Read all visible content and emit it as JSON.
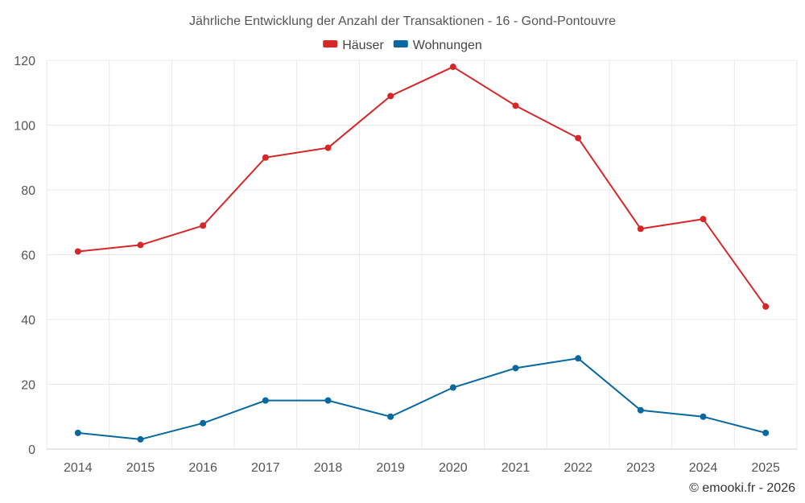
{
  "chart_data": {
    "type": "line",
    "title": "Jährliche Entwicklung der Anzahl der Transaktionen - 16 - Gond-Pontouvre",
    "categories": [
      "2014",
      "2015",
      "2016",
      "2017",
      "2018",
      "2019",
      "2020",
      "2021",
      "2022",
      "2023",
      "2024",
      "2025"
    ],
    "series": [
      {
        "name": "Häuser",
        "color": "#d62728",
        "values": [
          61,
          63,
          69,
          90,
          93,
          109,
          118,
          106,
          96,
          68,
          71,
          44
        ]
      },
      {
        "name": "Wohnungen",
        "color": "#0868a0",
        "values": [
          5,
          3,
          8,
          15,
          15,
          10,
          19,
          25,
          28,
          12,
          10,
          5
        ]
      }
    ],
    "yticks": [
      "0",
      "20",
      "40",
      "60",
      "80",
      "100",
      "120"
    ],
    "ylim": [
      0,
      120
    ],
    "xlabel": "",
    "ylabel": "",
    "grid": true,
    "legend": "top-center"
  },
  "footer": "© emooki.fr - 2026"
}
